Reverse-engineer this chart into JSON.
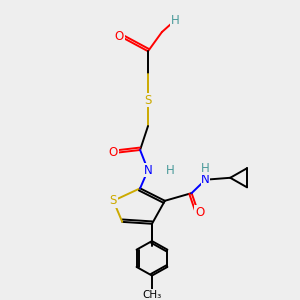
{
  "bg_color": "#eeeeee",
  "atom_colors": {
    "C": "#000000",
    "H": "#4a9a9a",
    "O": "#ff0000",
    "N": "#0000ff",
    "S": "#ccaa00"
  },
  "figsize": [
    3.0,
    3.0
  ],
  "dpi": 100,
  "lw": 1.4,
  "fs": 8.5,
  "fs_small": 7.5
}
